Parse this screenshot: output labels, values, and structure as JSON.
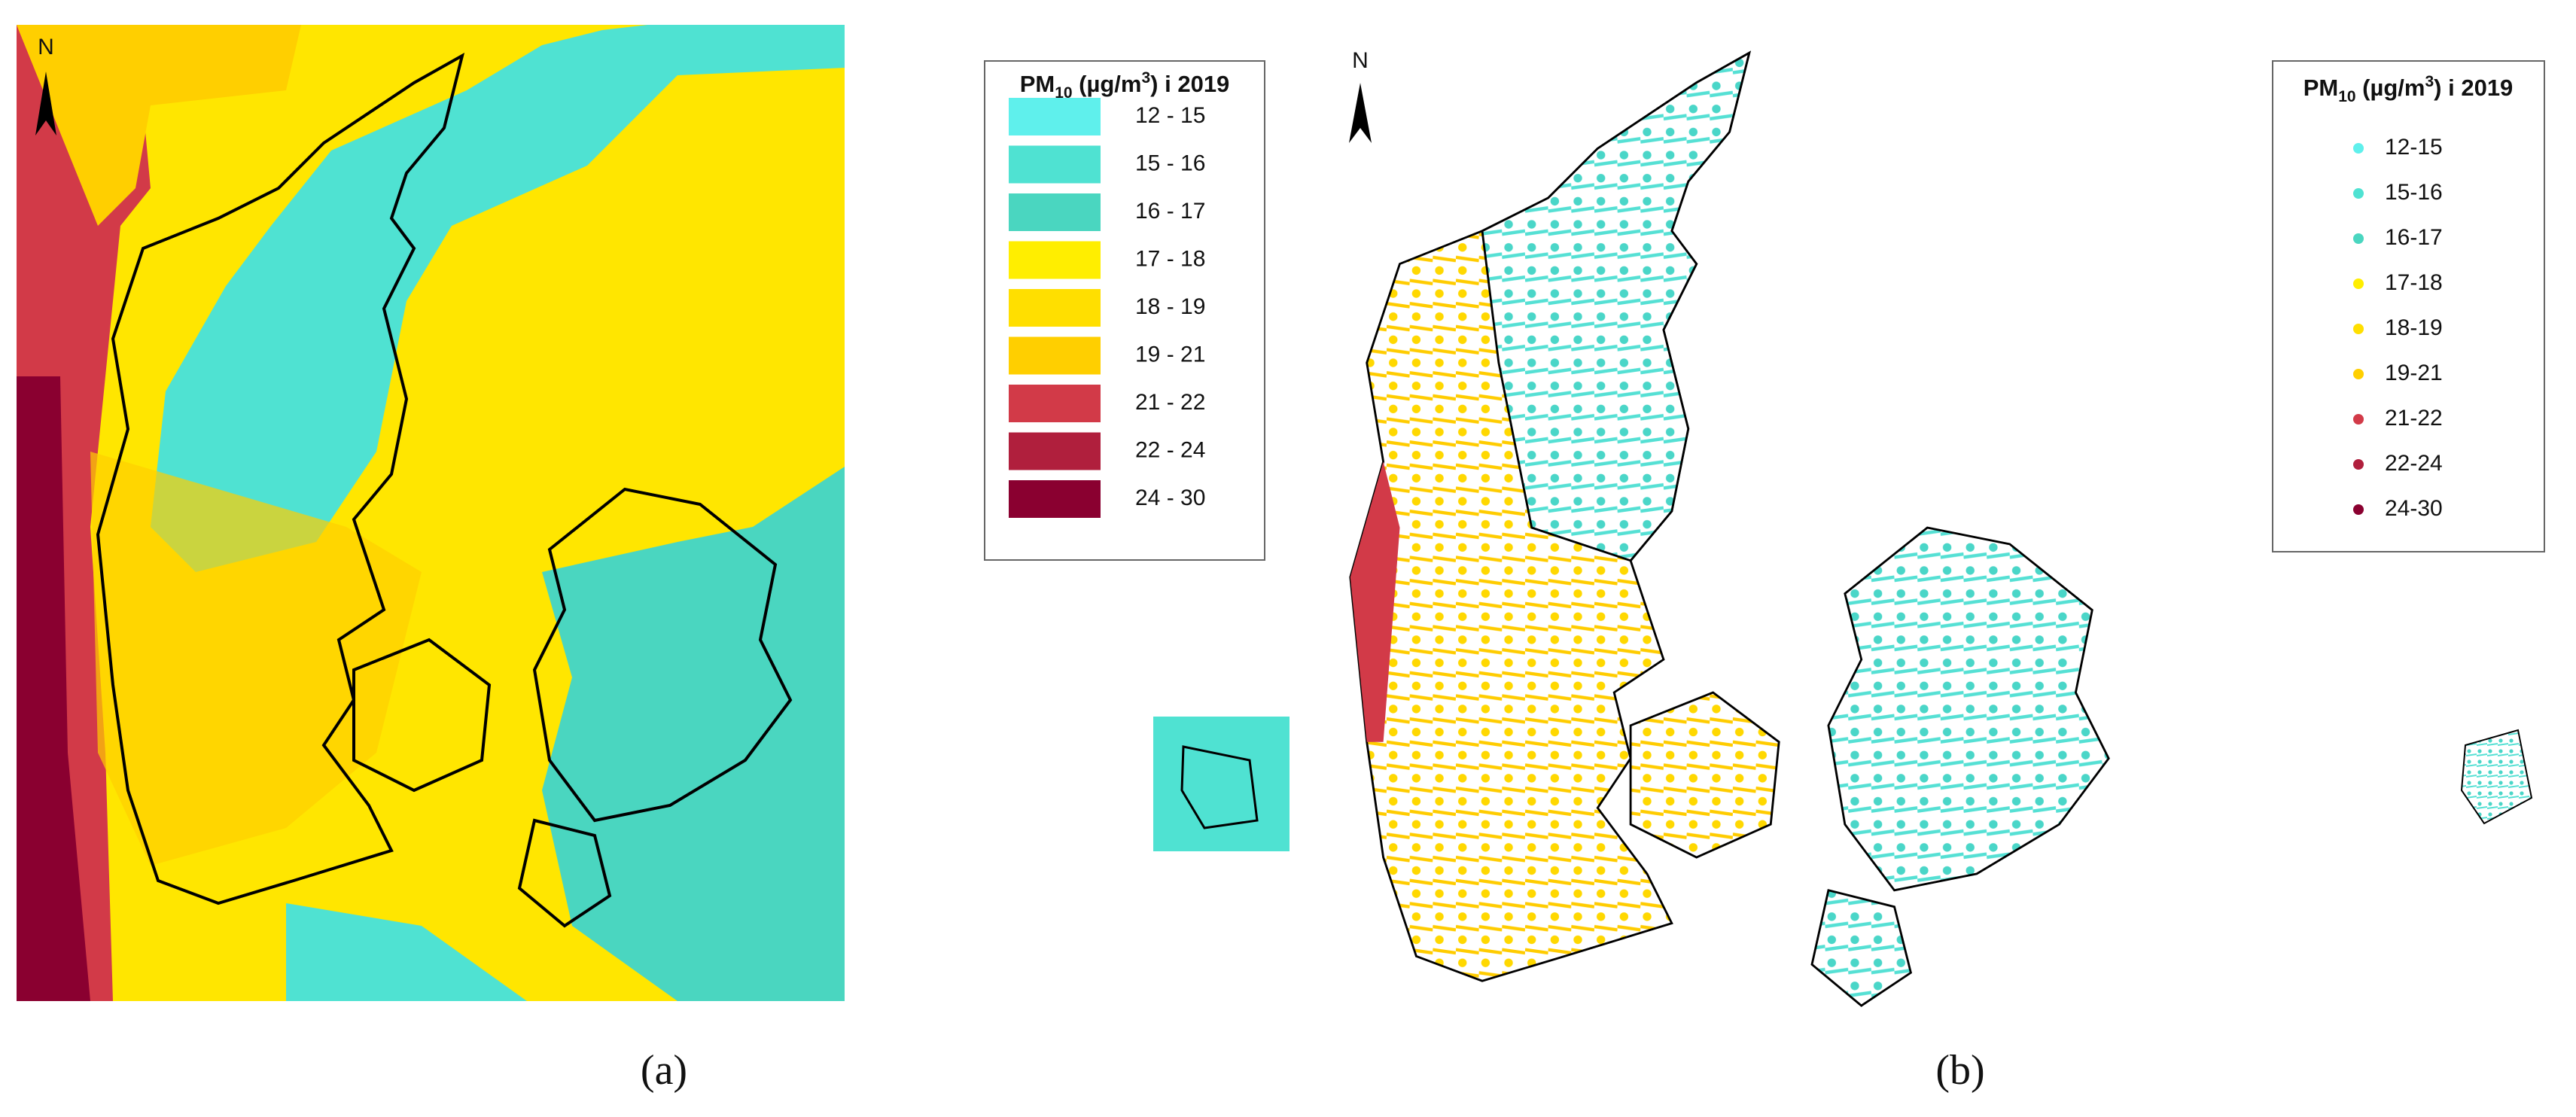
{
  "panels": [
    {
      "label": "(a)",
      "north": "N",
      "legend": {
        "title": {
          "main": "PM",
          "sub": "10",
          "unit": " (µg/m",
          "sup": "3",
          "rest": ") i 2019"
        },
        "items": [
          {
            "label": "12 - 15",
            "color": "#5ff0ec"
          },
          {
            "label": "15 - 16",
            "color": "#4fe2d2"
          },
          {
            "label": "16 - 17",
            "color": "#4ad6c0"
          },
          {
            "label": "17 - 18",
            "color": "#ffee00"
          },
          {
            "label": "18 - 19",
            "color": "#ffdf00"
          },
          {
            "label": "19 - 21",
            "color": "#ffcf00"
          },
          {
            "label": "21 - 22",
            "color": "#d23a48"
          },
          {
            "label": "22 - 24",
            "color": "#b01f3d"
          },
          {
            "label": "24 - 30",
            "color": "#8a0030"
          }
        ]
      }
    },
    {
      "label": "(b)",
      "north": "N",
      "legend": {
        "title": {
          "main": "PM",
          "sub": "10",
          "unit": " (µg/m",
          "sup": "3",
          "rest": ") i 2019"
        },
        "items": [
          {
            "label": "12-15",
            "color": "#5ff0ec"
          },
          {
            "label": "15-16",
            "color": "#4fe2d2"
          },
          {
            "label": "16-17",
            "color": "#4ad6c0"
          },
          {
            "label": "17-18",
            "color": "#ffee00"
          },
          {
            "label": "18-19",
            "color": "#ffdf00"
          },
          {
            "label": "19-21",
            "color": "#ffcf00"
          },
          {
            "label": "21-22",
            "color": "#d23a48"
          },
          {
            "label": "22-24",
            "color": "#b01f3d"
          },
          {
            "label": "24-30",
            "color": "#8a0030"
          }
        ]
      }
    }
  ]
}
